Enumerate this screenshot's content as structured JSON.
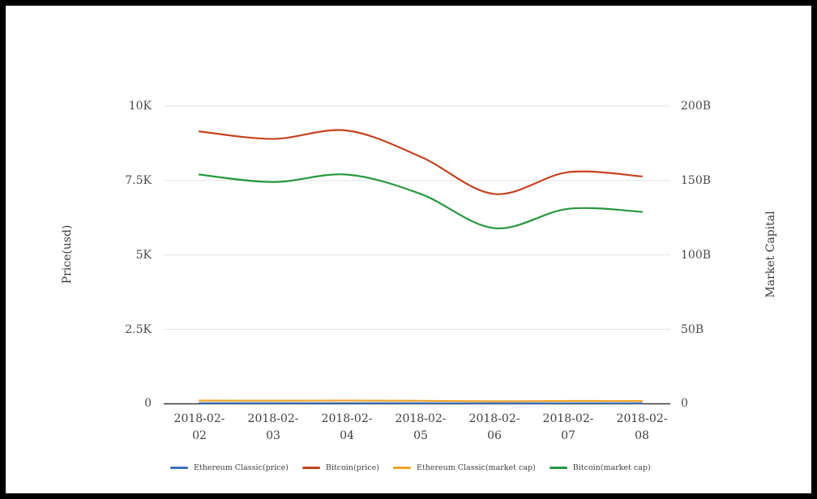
{
  "chart_data": {
    "type": "line",
    "smooth": true,
    "title": "",
    "grid": true,
    "legend_position": "bottom",
    "categories": [
      "2018-02-02",
      "2018-02-03",
      "2018-02-04",
      "2018-02-05",
      "2018-02-06",
      "2018-02-07",
      "2018-02-08"
    ],
    "series": [
      {
        "name": "Ethereum Classic(price)",
        "color": "#3b6db5",
        "axis": "left",
        "unit": "USD",
        "values": [
          22,
          21,
          22,
          20,
          17,
          19,
          18
        ]
      },
      {
        "name": "Bitcoin(price)",
        "color": "#c6421f",
        "axis": "left",
        "unit": "USD",
        "values": [
          9150,
          8900,
          9180,
          8300,
          7050,
          7780,
          7640
        ]
      },
      {
        "name": "Ethereum Classic(market cap)",
        "color": "#eda42a",
        "axis": "right",
        "unit": "billion USD",
        "values": [
          2.2,
          2.1,
          2.2,
          2.0,
          1.7,
          1.9,
          1.85
        ]
      },
      {
        "name": "Bitcoin(market cap)",
        "color": "#27973d",
        "axis": "right",
        "unit": "billion USD",
        "values": [
          154,
          149,
          154,
          141,
          118,
          131,
          129
        ]
      }
    ],
    "yaxis_left": {
      "label": "Price(usd)",
      "ticks": [
        "10K",
        "7.5K",
        "5K",
        "2.5K",
        "0"
      ],
      "range": [
        0,
        10000
      ],
      "unit": "USD"
    },
    "yaxis_right": {
      "label": "Market Capital",
      "ticks": [
        "200B",
        "150B",
        "100B",
        "50B",
        "0"
      ],
      "range": [
        0,
        200
      ],
      "unit": "billion USD"
    }
  }
}
